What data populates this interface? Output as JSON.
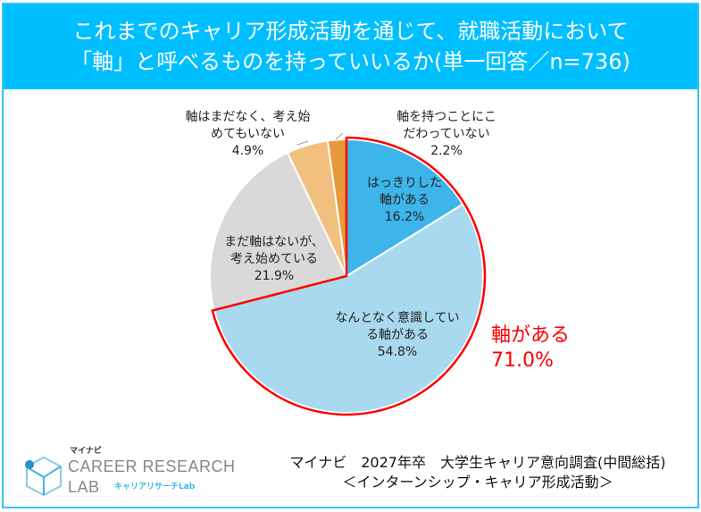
{
  "header": {
    "line1": "これまでのキャリア形成活動を通じて、就職活動において",
    "line2": "「軸」と呼べるものを持っていいるか(単一回答／n=736)"
  },
  "chart_data": {
    "type": "pie",
    "title": "これまでのキャリア形成活動を通じて、就職活動において「軸」と呼べるものを持っていいるか(単一回答／n=736)",
    "categories": [
      "はっきりした軸がある",
      "なんとなく意識している軸がある",
      "まだ軸はないが、考え始めている",
      "軸はまだなく、考え始めてもいない",
      "軸を持つことにこだわっていない"
    ],
    "values": [
      16.2,
      54.8,
      21.9,
      4.9,
      2.2
    ],
    "colors": [
      "#3DB5EA",
      "#A9D9EE",
      "#D9D9D9",
      "#F2C07E",
      "#E9993C"
    ],
    "labels": [
      {
        "l1": "はっきりした",
        "l2": "軸がある",
        "v": "16.2%"
      },
      {
        "l1": "なんとなく意識してい",
        "l2": "る軸がある",
        "v": "54.8%"
      },
      {
        "l1": "まだ軸はないが、",
        "l2": "考え始めている",
        "v": "21.9%"
      },
      {
        "l1": "軸はまだなく、考え始",
        "l2": "めてもいない",
        "v": "4.9%"
      },
      {
        "l1": "軸を持つことにこ",
        "l2": "だわっていない",
        "v": "2.2%"
      }
    ],
    "highlight": {
      "label": "軸がある",
      "value": "71.0%",
      "color": "#FF0000"
    }
  },
  "source": {
    "line1": "マイナビ　2027年卒　大学生キャリア意向調査(中間総括)",
    "line2": "＜インターンシップ・キャリア形成活動＞"
  },
  "logo": {
    "brand": "マイナビ",
    "name1": "CAREER RESEARCH",
    "name2": "LAB",
    "sub": "キャリアリサーチLab"
  }
}
